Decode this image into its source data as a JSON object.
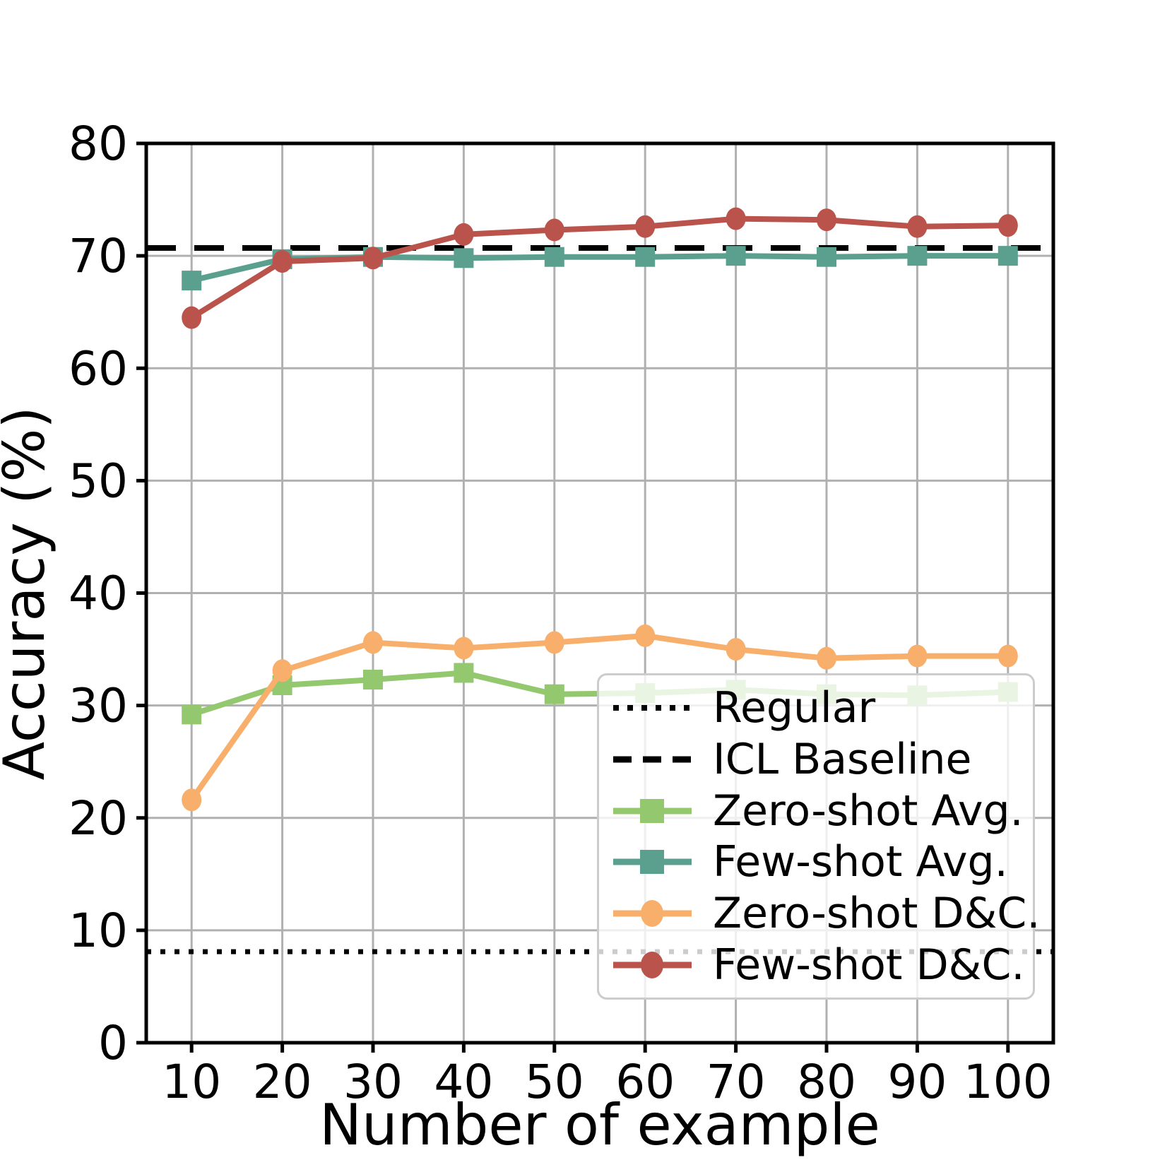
{
  "figure": {
    "background": "#ffffff",
    "text_color": "#000000",
    "grid_color": "#b0b0b0",
    "spine_color": "#000000",
    "legend_border_color": "#cccccc"
  },
  "chart_data": {
    "type": "line",
    "title": "",
    "xlabel": "Number of example",
    "ylabel": "Accuracy (%)",
    "x": [
      10,
      20,
      30,
      40,
      50,
      60,
      70,
      80,
      90,
      100
    ],
    "xticks": [
      10,
      20,
      30,
      40,
      50,
      60,
      70,
      80,
      90,
      100
    ],
    "yticks": [
      0,
      10,
      20,
      30,
      40,
      50,
      60,
      70,
      80
    ],
    "xlim": [
      5,
      105
    ],
    "ylim": [
      0,
      80
    ],
    "grid": true,
    "legend_position": "lower right",
    "ref_lines": [
      {
        "label": "Regular",
        "value": 8.1,
        "style": "dotted",
        "color": "#000000"
      },
      {
        "label": "ICL Baseline",
        "value": 70.7,
        "style": "dashed",
        "color": "#000000"
      }
    ],
    "series": [
      {
        "name": "Zero-shot Avg.",
        "marker": "square",
        "color": "#93c86f",
        "values": [
          29.2,
          31.8,
          32.3,
          32.9,
          31.0,
          31.1,
          31.4,
          31.0,
          30.9,
          31.2
        ]
      },
      {
        "name": "Few-shot Avg.",
        "marker": "square",
        "color": "#5ba08f",
        "values": [
          67.8,
          69.7,
          69.9,
          69.8,
          69.9,
          69.9,
          70.0,
          69.9,
          70.0,
          70.0
        ]
      },
      {
        "name": "Zero-shot D&C.",
        "marker": "circle",
        "color": "#f8af6b",
        "values": [
          21.6,
          33.1,
          35.6,
          35.1,
          35.6,
          36.2,
          35.0,
          34.2,
          34.4,
          34.4
        ]
      },
      {
        "name": "Few-shot D&C.",
        "marker": "circle",
        "color": "#b9534b",
        "values": [
          64.5,
          69.5,
          69.8,
          71.9,
          72.3,
          72.6,
          73.3,
          73.2,
          72.6,
          72.7
        ]
      }
    ]
  }
}
